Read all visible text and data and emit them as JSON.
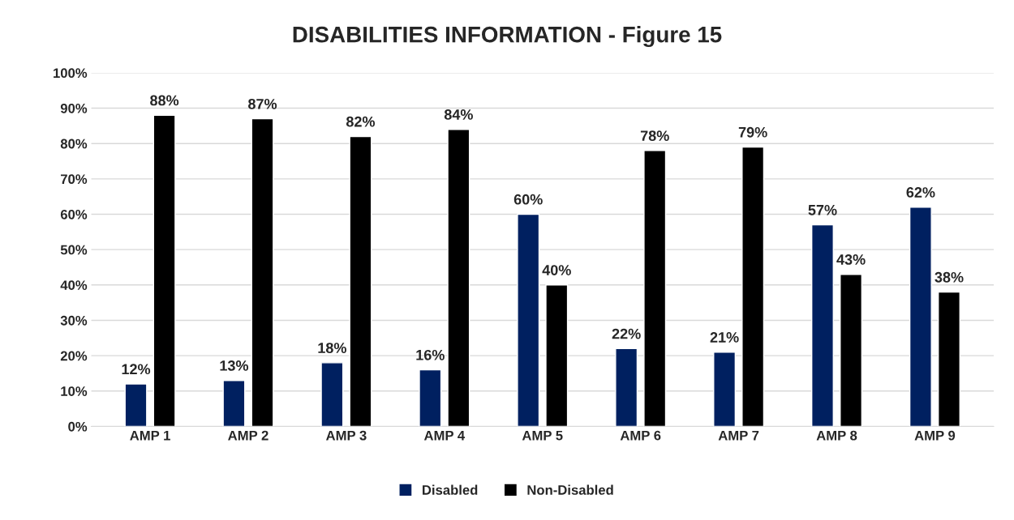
{
  "chart_data": {
    "type": "bar",
    "title": "DISABILITIES INFORMATION - Figure 15",
    "categories": [
      "AMP 1",
      "AMP 2",
      "AMP 3",
      "AMP 4",
      "AMP 5",
      "AMP 6",
      "AMP 7",
      "AMP 8",
      "AMP 9"
    ],
    "series": [
      {
        "name": "Disabled",
        "color": "#002060",
        "values": [
          12,
          13,
          18,
          16,
          60,
          22,
          21,
          57,
          62
        ],
        "value_labels": [
          "12%",
          "13%",
          "18%",
          "16%",
          "60%",
          "22%",
          "21%",
          "57%",
          "62%"
        ]
      },
      {
        "name": "Non-Disabled",
        "color": "#000000",
        "values": [
          88,
          87,
          82,
          84,
          40,
          78,
          79,
          43,
          38
        ],
        "value_labels": [
          "88%",
          "87%",
          "82%",
          "84%",
          "40%",
          "78%",
          "79%",
          "43%",
          "38%"
        ]
      }
    ],
    "ylim": [
      0,
      100
    ],
    "yticks": [
      {
        "value": 0,
        "label": "0%"
      },
      {
        "value": 10,
        "label": "10%"
      },
      {
        "value": 20,
        "label": "20%"
      },
      {
        "value": 30,
        "label": "30%"
      },
      {
        "value": 40,
        "label": "40%"
      },
      {
        "value": 50,
        "label": "50%"
      },
      {
        "value": 60,
        "label": "60%"
      },
      {
        "value": 70,
        "label": "70%"
      },
      {
        "value": 80,
        "label": "80%"
      },
      {
        "value": 90,
        "label": "90%"
      },
      {
        "value": 100,
        "label": "100%"
      }
    ],
    "grid": "y",
    "legend": "bottom"
  }
}
